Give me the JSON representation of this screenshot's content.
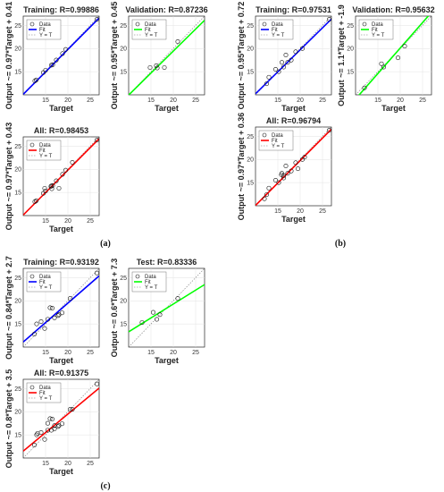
{
  "figure_labels": [
    "(a)",
    "(b)",
    "(c)"
  ],
  "chart_data": [
    {
      "type": "scatter",
      "group": "(a)",
      "title": "Training: R=0.99886",
      "xlabel": "Target",
      "ylabel": "Output ~= 0.97*Target + 0.41",
      "xlim": [
        10,
        27
      ],
      "ylim": [
        10,
        27
      ],
      "xticks": [
        15,
        20,
        25
      ],
      "yticks": [
        15,
        20,
        25
      ],
      "fit_color": "#0000ff",
      "legend": [
        "Data",
        "Fit",
        "Y = T"
      ],
      "fit": {
        "slope": 0.97,
        "intercept": 0.41
      },
      "points": [
        [
          12.6,
          13.0
        ],
        [
          12.9,
          13.2
        ],
        [
          14.5,
          14.8
        ],
        [
          15.0,
          15.3
        ],
        [
          16.3,
          16.4
        ],
        [
          16.6,
          16.5
        ],
        [
          17.4,
          17.5
        ],
        [
          18.8,
          18.9
        ],
        [
          19.5,
          19.8
        ],
        [
          26.5,
          26.3
        ]
      ]
    },
    {
      "type": "scatter",
      "group": "(a)",
      "title": "Validation: R=0.87236",
      "xlabel": "Target",
      "ylabel": "Output ~= 0.95*Target + 0.45",
      "xlim": [
        10,
        27
      ],
      "ylim": [
        10,
        27
      ],
      "xticks": [
        15,
        20,
        25
      ],
      "yticks": [
        15,
        20,
        25
      ],
      "fit_color": "#00ff00",
      "legend": [
        "Data",
        "Fit",
        "Y = T"
      ],
      "fit": {
        "slope": 0.95,
        "intercept": 0.45
      },
      "points": [
        [
          14.8,
          15.9
        ],
        [
          16.2,
          16.3
        ],
        [
          16.4,
          15.8
        ],
        [
          18.0,
          15.9
        ],
        [
          21.0,
          21.5
        ]
      ]
    },
    {
      "type": "scatter",
      "group": "(a)",
      "title": "All: R=0.98453",
      "xlabel": "Target",
      "ylabel": "Output ~= 0.97*Target + 0.43",
      "xlim": [
        10,
        27
      ],
      "ylim": [
        10,
        27
      ],
      "xticks": [
        15,
        20,
        25
      ],
      "yticks": [
        15,
        20,
        25
      ],
      "fit_color": "#ff0000",
      "legend": [
        "Data",
        "Fit",
        "Y = T"
      ],
      "fit": {
        "slope": 0.97,
        "intercept": 0.43
      },
      "points": [
        [
          12.6,
          13.0
        ],
        [
          12.9,
          13.2
        ],
        [
          14.5,
          14.8
        ],
        [
          14.8,
          15.9
        ],
        [
          15.0,
          15.3
        ],
        [
          16.2,
          16.3
        ],
        [
          16.3,
          16.4
        ],
        [
          16.4,
          15.8
        ],
        [
          16.6,
          16.5
        ],
        [
          17.4,
          17.5
        ],
        [
          18.0,
          15.9
        ],
        [
          18.8,
          18.9
        ],
        [
          19.5,
          19.8
        ],
        [
          21.0,
          21.5
        ],
        [
          26.5,
          26.3
        ]
      ]
    },
    {
      "type": "scatter",
      "group": "(b)",
      "title": "Training: R=0.97531",
      "xlabel": "Target",
      "ylabel": "Output ~= 0.95*Target + 0.72",
      "xlim": [
        10,
        27
      ],
      "ylim": [
        10,
        27
      ],
      "xticks": [
        15,
        20,
        25
      ],
      "yticks": [
        15,
        20,
        25
      ],
      "fit_color": "#0000ff",
      "legend": [
        "Data",
        "Fit",
        "Y = T"
      ],
      "fit": {
        "slope": 0.95,
        "intercept": 0.72
      },
      "points": [
        [
          12.5,
          12.4
        ],
        [
          13.0,
          13.8
        ],
        [
          14.5,
          15.5
        ],
        [
          15.2,
          15.0
        ],
        [
          15.9,
          17.0
        ],
        [
          16.3,
          16.0
        ],
        [
          16.8,
          18.6
        ],
        [
          17.2,
          17.0
        ],
        [
          18.0,
          17.5
        ],
        [
          19.0,
          19.3
        ],
        [
          20.5,
          20.0
        ],
        [
          26.5,
          26.3
        ]
      ]
    },
    {
      "type": "scatter",
      "group": "(b)",
      "title": "Validation: R=0.95632",
      "xlabel": "Target",
      "ylabel": "Output ~= 1.1*Target + -1.9",
      "xlim": [
        10,
        27
      ],
      "ylim": [
        10,
        27
      ],
      "xticks": [
        15,
        20,
        25
      ],
      "yticks": [
        15,
        20,
        25
      ],
      "fit_color": "#00ff00",
      "legend": [
        "Data",
        "Fit",
        "Y = T"
      ],
      "fit": {
        "slope": 1.1,
        "intercept": -1.9
      },
      "points": [
        [
          12.0,
          11.5
        ],
        [
          15.8,
          16.7
        ],
        [
          16.3,
          16.0
        ],
        [
          19.5,
          18.0
        ],
        [
          21.0,
          20.5
        ]
      ]
    },
    {
      "type": "scatter",
      "group": "(b)",
      "title": "All: R=0.96794",
      "xlabel": "Target",
      "ylabel": "Output ~= 0.97*Target + 0.36",
      "xlim": [
        10,
        27
      ],
      "ylim": [
        10,
        27
      ],
      "xticks": [
        15,
        20,
        25
      ],
      "yticks": [
        15,
        20,
        25
      ],
      "fit_color": "#ff0000",
      "legend": [
        "Data",
        "Fit",
        "Y = T"
      ],
      "fit": {
        "slope": 0.97,
        "intercept": 0.36
      },
      "points": [
        [
          12.0,
          11.5
        ],
        [
          12.5,
          12.4
        ],
        [
          13.0,
          13.8
        ],
        [
          14.5,
          15.5
        ],
        [
          15.2,
          15.0
        ],
        [
          15.8,
          16.7
        ],
        [
          15.9,
          17.0
        ],
        [
          16.3,
          16.0
        ],
        [
          16.3,
          16.5
        ],
        [
          16.8,
          18.6
        ],
        [
          17.2,
          17.0
        ],
        [
          18.0,
          17.5
        ],
        [
          19.0,
          19.3
        ],
        [
          19.5,
          18.0
        ],
        [
          20.5,
          20.0
        ],
        [
          21.0,
          20.5
        ],
        [
          26.5,
          26.3
        ]
      ]
    },
    {
      "type": "scatter",
      "group": "(c)",
      "title": "Training: R=0.93192",
      "xlabel": "Target",
      "ylabel": "Output ~= 0.84*Target + 2.7",
      "xlim": [
        10,
        27
      ],
      "ylim": [
        10,
        27
      ],
      "xticks": [
        15,
        20,
        25
      ],
      "yticks": [
        15,
        20,
        25
      ],
      "fit_color": "#0000ff",
      "legend": [
        "Data",
        "Fit",
        "Y = T"
      ],
      "fit": {
        "slope": 0.84,
        "intercept": 2.7
      },
      "points": [
        [
          12.5,
          12.8
        ],
        [
          13.0,
          15.0
        ],
        [
          14.0,
          15.5
        ],
        [
          14.8,
          14.0
        ],
        [
          15.5,
          16.0
        ],
        [
          16.0,
          18.5
        ],
        [
          16.5,
          18.4
        ],
        [
          17.0,
          16.3
        ],
        [
          17.8,
          16.8
        ],
        [
          18.0,
          17.0
        ],
        [
          18.7,
          17.4
        ],
        [
          20.5,
          20.5
        ],
        [
          26.5,
          26.0
        ]
      ]
    },
    {
      "type": "scatter",
      "group": "(c)",
      "title": "Test: R=0.83336",
      "xlabel": "Target",
      "ylabel": "Output ~= 0.6*Target + 7.3",
      "xlim": [
        10,
        27
      ],
      "ylim": [
        10,
        27
      ],
      "xticks": [
        15,
        20,
        25
      ],
      "yticks": [
        15,
        20,
        25
      ],
      "fit_color": "#00ff00",
      "legend": [
        "Data",
        "Fit",
        "Y = T"
      ],
      "fit": {
        "slope": 0.6,
        "intercept": 7.3
      },
      "points": [
        [
          13.0,
          15.3
        ],
        [
          15.5,
          17.5
        ],
        [
          16.3,
          16.0
        ],
        [
          17.0,
          17.0
        ],
        [
          21.0,
          20.5
        ]
      ]
    },
    {
      "type": "scatter",
      "group": "(c)",
      "title": "All: R=0.91375",
      "xlabel": "Target",
      "ylabel": "Output ~= 0.8*Target + 3.5",
      "xlim": [
        10,
        27
      ],
      "ylim": [
        10,
        27
      ],
      "xticks": [
        15,
        20,
        25
      ],
      "yticks": [
        15,
        20,
        25
      ],
      "fit_color": "#ff0000",
      "legend": [
        "Data",
        "Fit",
        "Y = T"
      ],
      "fit": {
        "slope": 0.8,
        "intercept": 3.5
      },
      "points": [
        [
          12.5,
          12.8
        ],
        [
          13.0,
          15.0
        ],
        [
          13.2,
          15.3
        ],
        [
          14.0,
          15.5
        ],
        [
          14.8,
          14.0
        ],
        [
          15.5,
          16.0
        ],
        [
          15.5,
          17.5
        ],
        [
          16.0,
          18.5
        ],
        [
          16.3,
          16.0
        ],
        [
          16.5,
          18.4
        ],
        [
          17.0,
          16.3
        ],
        [
          17.0,
          17.0
        ],
        [
          17.8,
          16.8
        ],
        [
          18.0,
          17.0
        ],
        [
          18.7,
          17.4
        ],
        [
          20.5,
          20.5
        ],
        [
          21.0,
          20.5
        ],
        [
          26.5,
          26.0
        ]
      ]
    }
  ]
}
